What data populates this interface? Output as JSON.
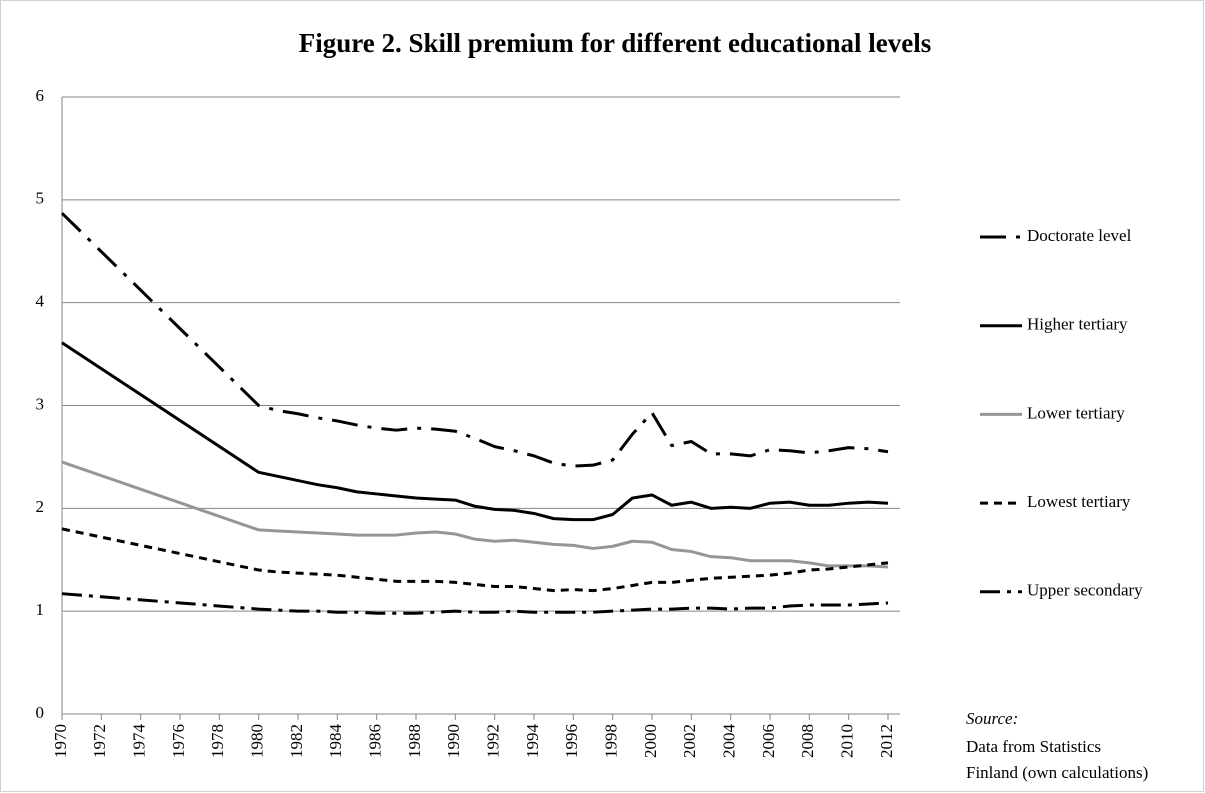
{
  "chart_data": {
    "type": "line",
    "title": "Figure 2. Skill premium for different educational levels",
    "x": [
      1970,
      1980,
      1981,
      1982,
      1983,
      1984,
      1985,
      1986,
      1987,
      1988,
      1989,
      1990,
      1991,
      1992,
      1993,
      1994,
      1995,
      1996,
      1997,
      1998,
      1999,
      2000,
      2001,
      2002,
      2003,
      2004,
      2005,
      2006,
      2007,
      2008,
      2009,
      2010,
      2011,
      2012
    ],
    "xlim": [
      1970,
      2012
    ],
    "xticks": [
      1970,
      1972,
      1974,
      1976,
      1978,
      1980,
      1982,
      1984,
      1986,
      1988,
      1990,
      1992,
      1994,
      1996,
      1998,
      2000,
      2002,
      2004,
      2006,
      2008,
      2010,
      2012
    ],
    "ylim": [
      0,
      6
    ],
    "yticks": [
      0,
      1,
      2,
      3,
      4,
      5,
      6
    ],
    "grid": true,
    "legend": "right",
    "series": [
      {
        "name": "Doctorate level",
        "color": "#000000",
        "dash": "26 10 4 10",
        "values": [
          4.87,
          3.0,
          2.95,
          2.92,
          2.88,
          2.85,
          2.81,
          2.78,
          2.76,
          2.78,
          2.77,
          2.75,
          2.68,
          2.6,
          2.56,
          2.51,
          2.44,
          2.41,
          2.42,
          2.47,
          2.72,
          2.93,
          2.61,
          2.65,
          2.53,
          2.53,
          2.51,
          2.57,
          2.56,
          2.54,
          2.56,
          2.59,
          2.58,
          2.55
        ]
      },
      {
        "name": "Higher tertiary",
        "color": "#000000",
        "dash": "none",
        "values": [
          3.61,
          2.35,
          2.31,
          2.27,
          2.23,
          2.2,
          2.16,
          2.14,
          2.12,
          2.1,
          2.09,
          2.08,
          2.02,
          1.99,
          1.98,
          1.95,
          1.9,
          1.89,
          1.89,
          1.94,
          2.1,
          2.13,
          2.03,
          2.06,
          2.0,
          2.01,
          2.0,
          2.05,
          2.06,
          2.03,
          2.03,
          2.05,
          2.06,
          2.05
        ]
      },
      {
        "name": "Lower tertiary",
        "color": "#969696",
        "dash": "none",
        "values": [
          2.45,
          1.79,
          1.78,
          1.77,
          1.76,
          1.75,
          1.74,
          1.74,
          1.74,
          1.76,
          1.77,
          1.75,
          1.7,
          1.68,
          1.69,
          1.67,
          1.65,
          1.64,
          1.61,
          1.63,
          1.68,
          1.67,
          1.6,
          1.58,
          1.53,
          1.52,
          1.49,
          1.49,
          1.49,
          1.47,
          1.44,
          1.44,
          1.44,
          1.43
        ]
      },
      {
        "name": "Lowest tertiary",
        "color": "#000000",
        "dash": "8 6",
        "values": [
          1.8,
          1.4,
          1.38,
          1.37,
          1.36,
          1.35,
          1.33,
          1.31,
          1.29,
          1.29,
          1.29,
          1.28,
          1.26,
          1.24,
          1.24,
          1.22,
          1.2,
          1.21,
          1.2,
          1.22,
          1.25,
          1.28,
          1.28,
          1.3,
          1.32,
          1.33,
          1.34,
          1.35,
          1.37,
          1.4,
          1.41,
          1.43,
          1.45,
          1.47
        ]
      },
      {
        "name": "Upper secondary",
        "color": "#000000",
        "dash": "20 7 4 7",
        "values": [
          1.17,
          1.02,
          1.01,
          1.0,
          1.0,
          0.99,
          0.99,
          0.98,
          0.98,
          0.98,
          0.99,
          1.0,
          0.99,
          0.99,
          1.0,
          0.99,
          0.99,
          0.99,
          0.99,
          1.0,
          1.01,
          1.02,
          1.02,
          1.03,
          1.03,
          1.02,
          1.03,
          1.03,
          1.05,
          1.06,
          1.06,
          1.06,
          1.07,
          1.08
        ]
      }
    ],
    "source_label": "Source:",
    "source_lines": [
      "Data from Statistics",
      "Finland (own calculations)"
    ]
  }
}
